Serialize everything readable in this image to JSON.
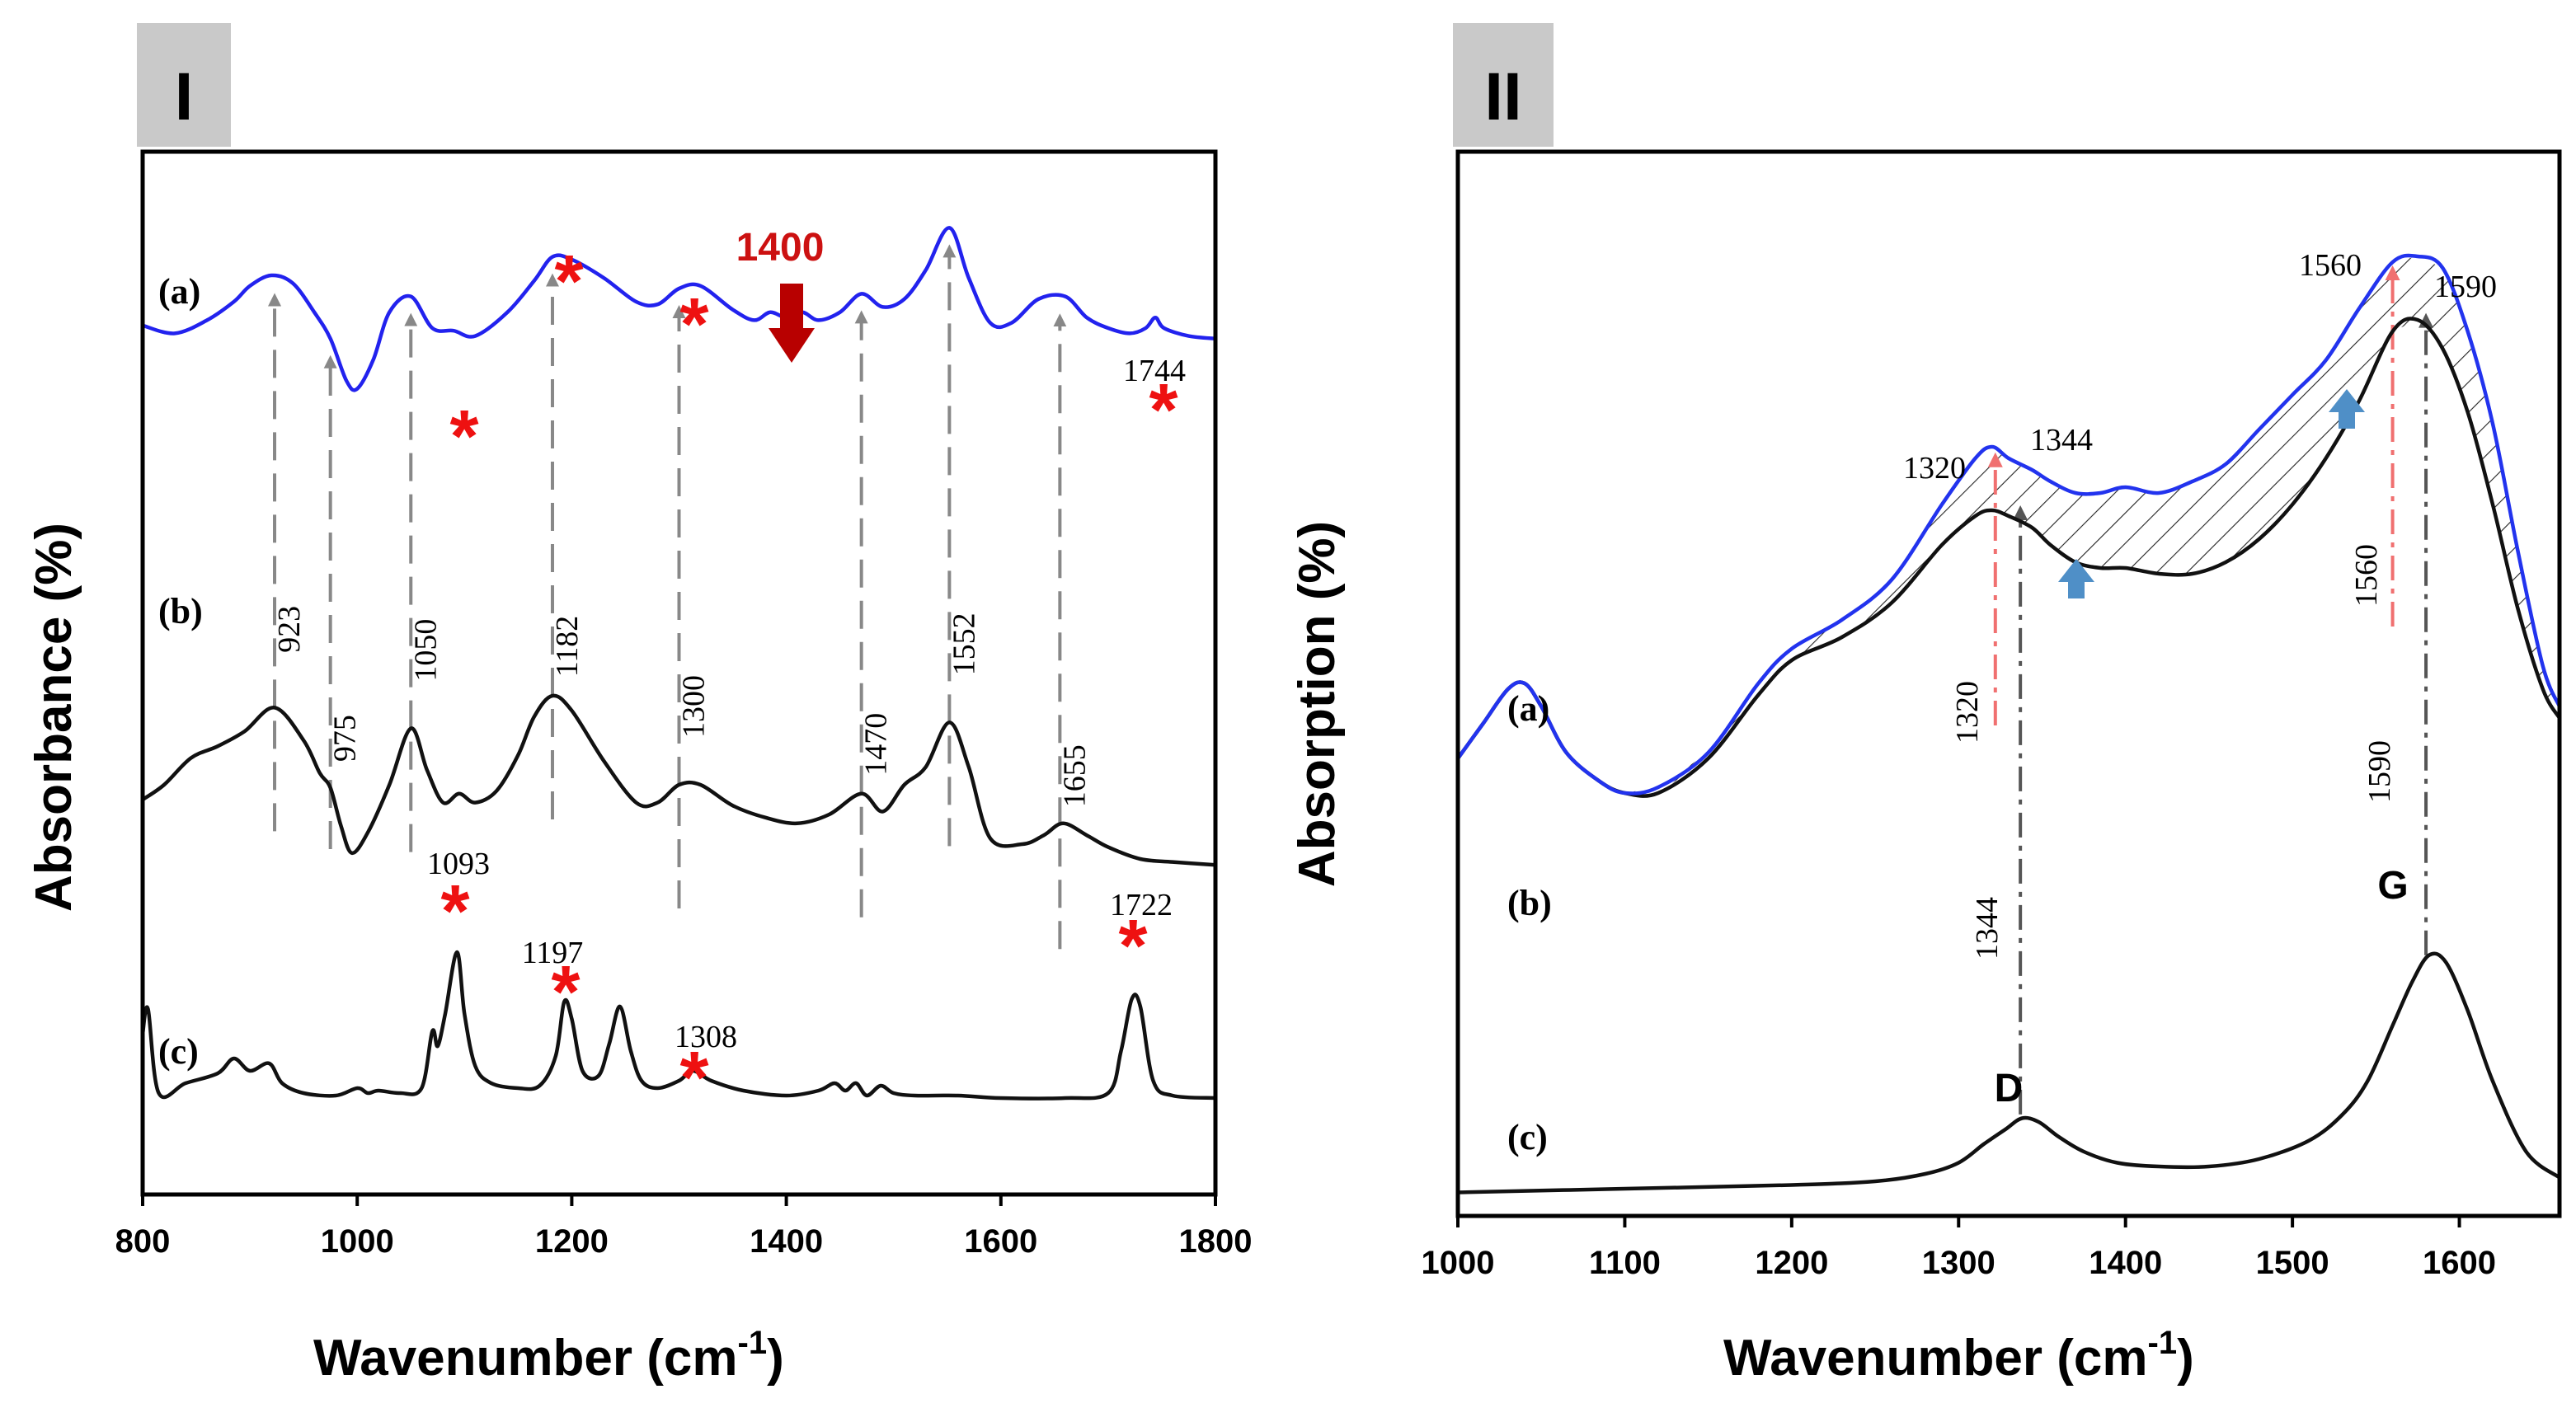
{
  "chart_data": [
    {
      "panel": "I",
      "type": "line",
      "xlabel": "Wavenumber (cm",
      "xlabel_sup": "-1",
      "xlabel_close": ")",
      "ylabel": "Absorbance (%)",
      "xlim": [
        800,
        1800
      ],
      "xticks": [
        "800",
        "1000",
        "1200",
        "1400",
        "1600",
        "1800"
      ],
      "series": [
        {
          "name": "(a)",
          "color": "#2222ee",
          "x": [
            800,
            830,
            860,
            885,
            900,
            920,
            940,
            960,
            975,
            990,
            1000,
            1015,
            1030,
            1050,
            1070,
            1090,
            1110,
            1140,
            1165,
            1182,
            1200,
            1230,
            1260,
            1280,
            1300,
            1320,
            1350,
            1370,
            1385,
            1400,
            1415,
            1430,
            1450,
            1470,
            1490,
            1510,
            1530,
            1552,
            1570,
            1590,
            1610,
            1635,
            1660,
            1680,
            1700,
            1720,
            1735,
            1744,
            1752,
            1775,
            1800
          ],
          "values": [
            0.61,
            0.58,
            0.63,
            0.7,
            0.76,
            0.8,
            0.77,
            0.66,
            0.56,
            0.4,
            0.37,
            0.48,
            0.66,
            0.72,
            0.6,
            0.59,
            0.57,
            0.66,
            0.78,
            0.87,
            0.86,
            0.79,
            0.7,
            0.69,
            0.75,
            0.76,
            0.67,
            0.63,
            0.66,
            0.64,
            0.66,
            0.63,
            0.66,
            0.73,
            0.68,
            0.71,
            0.82,
            0.98,
            0.79,
            0.62,
            0.62,
            0.71,
            0.72,
            0.64,
            0.6,
            0.58,
            0.6,
            0.64,
            0.6,
            0.57,
            0.56
          ]
        },
        {
          "name": "(b)",
          "color": "#111111",
          "x": [
            800,
            820,
            845,
            870,
            895,
            923,
            950,
            965,
            975,
            985,
            995,
            1010,
            1030,
            1050,
            1065,
            1080,
            1095,
            1110,
            1130,
            1150,
            1165,
            1182,
            1200,
            1230,
            1260,
            1280,
            1300,
            1320,
            1350,
            1380,
            1410,
            1440,
            1470,
            1490,
            1510,
            1530,
            1552,
            1570,
            1590,
            1620,
            1640,
            1658,
            1680,
            1700,
            1730,
            1760,
            1800
          ],
          "values": [
            0.25,
            0.3,
            0.39,
            0.43,
            0.48,
            0.56,
            0.45,
            0.34,
            0.29,
            0.16,
            0.07,
            0.14,
            0.3,
            0.49,
            0.35,
            0.24,
            0.27,
            0.24,
            0.28,
            0.4,
            0.53,
            0.6,
            0.55,
            0.38,
            0.24,
            0.24,
            0.3,
            0.3,
            0.23,
            0.19,
            0.17,
            0.2,
            0.27,
            0.21,
            0.3,
            0.36,
            0.51,
            0.36,
            0.12,
            0.1,
            0.13,
            0.17,
            0.13,
            0.09,
            0.05,
            0.04,
            0.03
          ]
        },
        {
          "name": "(c)",
          "color": "#111111",
          "x": [
            800,
            805,
            815,
            840,
            870,
            885,
            900,
            918,
            930,
            950,
            980,
            1000,
            1010,
            1020,
            1040,
            1060,
            1070,
            1075,
            1082,
            1093,
            1100,
            1110,
            1125,
            1150,
            1170,
            1185,
            1193,
            1200,
            1210,
            1225,
            1235,
            1245,
            1255,
            1265,
            1280,
            1300,
            1313,
            1330,
            1360,
            1400,
            1430,
            1445,
            1455,
            1465,
            1475,
            1488,
            1500,
            1520,
            1560,
            1600,
            1660,
            1700,
            1712,
            1722,
            1730,
            1742,
            1760,
            1800
          ],
          "values": [
            0.62,
            0.72,
            0.38,
            0.42,
            0.46,
            0.52,
            0.47,
            0.5,
            0.42,
            0.38,
            0.37,
            0.4,
            0.38,
            0.39,
            0.38,
            0.4,
            0.63,
            0.57,
            0.7,
            0.95,
            0.7,
            0.49,
            0.42,
            0.4,
            0.41,
            0.53,
            0.75,
            0.68,
            0.47,
            0.45,
            0.58,
            0.73,
            0.55,
            0.43,
            0.4,
            0.43,
            0.47,
            0.43,
            0.39,
            0.37,
            0.39,
            0.42,
            0.39,
            0.42,
            0.37,
            0.41,
            0.38,
            0.37,
            0.37,
            0.36,
            0.36,
            0.38,
            0.55,
            0.76,
            0.73,
            0.43,
            0.37,
            0.36
          ]
        }
      ],
      "peaks": [
        "923",
        "975",
        "1050",
        "1182",
        "1300",
        "1470",
        "1552",
        "1655"
      ],
      "annotations": {
        "highlight": "1400",
        "label_1744": "1744",
        "label_1093": "1093",
        "label_1197": "1197",
        "label_1308": "1308",
        "label_1722": "1722",
        "star": "*"
      }
    },
    {
      "panel": "II",
      "type": "line",
      "xlabel": "Wavenumber (cm",
      "xlabel_sup": "-1",
      "xlabel_close": ")",
      "ylabel": "Absorption (%)",
      "xlim": [
        1000,
        1660
      ],
      "xticks": [
        "1000",
        "1100",
        "1200",
        "1300",
        "1400",
        "1500",
        "1600"
      ],
      "series": [
        {
          "name": "(a)",
          "color": "#2233ee",
          "x": [
            1000,
            1015,
            1030,
            1040,
            1050,
            1065,
            1085,
            1100,
            1120,
            1150,
            1180,
            1200,
            1230,
            1260,
            1290,
            1310,
            1320,
            1330,
            1344,
            1355,
            1370,
            1385,
            1400,
            1420,
            1440,
            1460,
            1480,
            1500,
            1520,
            1540,
            1560,
            1575,
            1590,
            1605,
            1620,
            1635,
            1650,
            1660
          ],
          "values": [
            0.2,
            0.26,
            0.32,
            0.33,
            0.29,
            0.21,
            0.16,
            0.14,
            0.15,
            0.21,
            0.33,
            0.39,
            0.44,
            0.51,
            0.64,
            0.72,
            0.74,
            0.72,
            0.7,
            0.68,
            0.66,
            0.66,
            0.67,
            0.66,
            0.68,
            0.71,
            0.77,
            0.83,
            0.89,
            0.98,
            1.06,
            1.07,
            1.05,
            0.94,
            0.78,
            0.56,
            0.36,
            0.29
          ]
        },
        {
          "name": "(b)",
          "color": "#111111",
          "x": [
            1000,
            1015,
            1030,
            1040,
            1050,
            1065,
            1085,
            1100,
            1120,
            1150,
            1180,
            1200,
            1230,
            1260,
            1290,
            1310,
            1320,
            1330,
            1344,
            1355,
            1370,
            1385,
            1400,
            1420,
            1440,
            1460,
            1480,
            1500,
            1520,
            1540,
            1560,
            1575,
            1590,
            1605,
            1620,
            1635,
            1650,
            1660
          ],
          "values": [
            0.2,
            0.26,
            0.32,
            0.33,
            0.29,
            0.21,
            0.16,
            0.14,
            0.14,
            0.2,
            0.31,
            0.37,
            0.41,
            0.47,
            0.57,
            0.62,
            0.63,
            0.62,
            0.6,
            0.57,
            0.54,
            0.53,
            0.53,
            0.52,
            0.52,
            0.54,
            0.58,
            0.64,
            0.72,
            0.82,
            0.94,
            0.96,
            0.91,
            0.8,
            0.64,
            0.46,
            0.32,
            0.27
          ]
        },
        {
          "name": "(c)",
          "color": "#111111",
          "x": [
            1000,
            1100,
            1200,
            1250,
            1280,
            1300,
            1315,
            1328,
            1338,
            1348,
            1360,
            1375,
            1395,
            1420,
            1450,
            1480,
            1510,
            1530,
            1545,
            1560,
            1572,
            1582,
            1592,
            1605,
            1620,
            1640,
            1660
          ],
          "values": [
            0.03,
            0.04,
            0.05,
            0.06,
            0.08,
            0.11,
            0.16,
            0.2,
            0.23,
            0.22,
            0.18,
            0.14,
            0.11,
            0.1,
            0.1,
            0.12,
            0.17,
            0.24,
            0.33,
            0.48,
            0.6,
            0.67,
            0.65,
            0.52,
            0.33,
            0.14,
            0.07
          ]
        }
      ],
      "peaks": [
        "1320",
        "1344",
        "1560",
        "1590"
      ],
      "band_labels": {
        "D": "D",
        "G": "G"
      }
    }
  ]
}
